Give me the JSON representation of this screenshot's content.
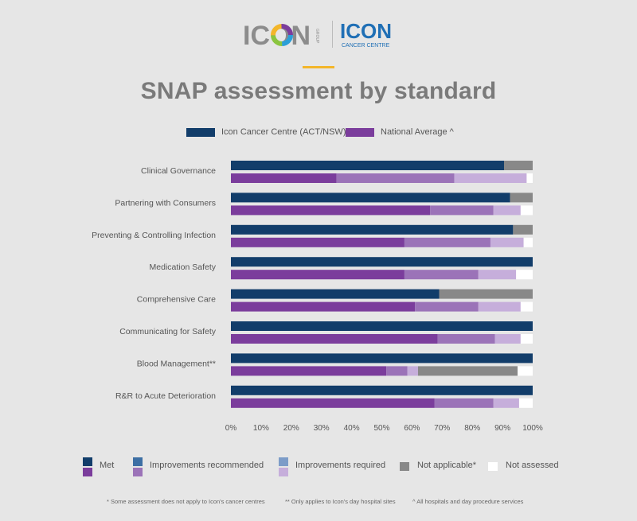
{
  "logos": {
    "group_text": "ICON",
    "group_sub": "GROUP",
    "cancer_text": "ICON",
    "cancer_sub": "CANCER CENTRE"
  },
  "title": "SNAP assessment by standard",
  "legend_top": {
    "icon": "Icon Cancer Centre (ACT/NSW)",
    "national": "National Average ^"
  },
  "legend_bottom": {
    "met": "Met",
    "improvements_recommended": "Improvements recommended",
    "improvements_required": "Improvements required",
    "not_applicable": "Not applicable*",
    "not_assessed": "Not assessed"
  },
  "footnotes": {
    "f1": "*  Some assessment does not apply to Icon's cancer centres",
    "f2": "** Only applies to Icon's day hospital sites",
    "f3": "^ All hospitals and day procedure services"
  },
  "chart_data": {
    "type": "bar",
    "orientation": "horizontal",
    "stacked": true,
    "categories": [
      "Clinical Governance",
      "Partnering with Consumers",
      "Preventing & Controlling Infection",
      "Medication Safety",
      "Comprehensive Care",
      "Communicating for Safety",
      "Blood Management**",
      "R&R to Acute Deterioration"
    ],
    "x_ticks": [
      "0%",
      "10%",
      "20%",
      "30%",
      "40%",
      "50%",
      "60%",
      "70%",
      "80%",
      "90%",
      "100%"
    ],
    "xlim": [
      0,
      100
    ],
    "segments": [
      "Met",
      "Improvements recommended",
      "Improvements required",
      "Not applicable*",
      "Not assessed"
    ],
    "series": [
      {
        "name": "Icon Cancer Centre (ACT/NSW)",
        "colors": [
          "#123d6a",
          "#3d6fa4",
          "#7c9cc8",
          "#888888",
          "#ffffff"
        ],
        "values": [
          [
            90.5,
            0,
            0,
            9.5,
            0
          ],
          [
            92.5,
            0,
            0,
            7.5,
            0
          ],
          [
            93.5,
            0,
            0,
            6.5,
            0
          ],
          [
            100,
            0,
            0,
            0,
            0
          ],
          [
            69,
            0,
            0,
            31,
            0
          ],
          [
            100,
            0,
            0,
            0,
            0
          ],
          [
            100,
            0,
            0,
            0,
            0
          ],
          [
            100,
            0,
            0,
            0,
            0
          ]
        ]
      },
      {
        "name": "National Average ^",
        "colors": [
          "#7b3d9c",
          "#9b73b8",
          "#c6aedb",
          "#888888",
          "#ffffff"
        ],
        "values": [
          [
            35,
            39,
            24,
            0,
            2
          ],
          [
            66,
            21,
            9,
            0,
            4
          ],
          [
            57.5,
            28.5,
            11,
            0,
            3
          ],
          [
            57.5,
            24.5,
            12.5,
            0,
            5.5
          ],
          [
            61,
            21,
            14,
            0,
            4
          ],
          [
            68.5,
            19,
            8.5,
            0,
            4
          ],
          [
            51.5,
            7,
            3.5,
            33,
            5
          ],
          [
            67.5,
            19.5,
            8.5,
            0,
            4.5
          ]
        ]
      }
    ]
  }
}
